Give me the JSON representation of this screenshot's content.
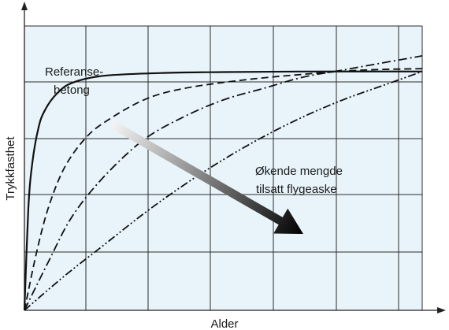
{
  "chart_data": {
    "type": "line",
    "title": "",
    "xlabel": "Alder",
    "ylabel": "Trykkfasthet",
    "xlim": [
      0,
      1
    ],
    "ylim": [
      0,
      1
    ],
    "grid": true,
    "plot_background": "#e8f4fa",
    "annotations": {
      "reference_label_line1": "Referanse-",
      "reference_label_line2": "betong",
      "arrow_label_line1": "Økende mengde",
      "arrow_label_line2": "tilsatt flygeaske"
    },
    "series": [
      {
        "style": "solid",
        "x": [
          0,
          0.01,
          0.02,
          0.035,
          0.05,
          0.08,
          0.12,
          0.2,
          0.35,
          0.5,
          0.7,
          1.0
        ],
        "y": [
          0,
          0.36,
          0.52,
          0.64,
          0.7,
          0.76,
          0.8,
          0.825,
          0.835,
          0.838,
          0.84,
          0.84
        ]
      },
      {
        "style": "dashed",
        "x": [
          0,
          0.03,
          0.06,
          0.1,
          0.15,
          0.2,
          0.3,
          0.4,
          0.55,
          0.7,
          0.85,
          1.0
        ],
        "y": [
          0,
          0.2,
          0.36,
          0.5,
          0.6,
          0.66,
          0.74,
          0.78,
          0.81,
          0.83,
          0.845,
          0.85
        ]
      },
      {
        "style": "dash-dot",
        "x": [
          0,
          0.06,
          0.12,
          0.2,
          0.3,
          0.4,
          0.5,
          0.6,
          0.7,
          0.8,
          0.9,
          1.0
        ],
        "y": [
          0,
          0.17,
          0.33,
          0.47,
          0.6,
          0.68,
          0.74,
          0.78,
          0.82,
          0.845,
          0.87,
          0.895
        ]
      },
      {
        "style": "dash-dot-dot",
        "x": [
          0,
          0.1,
          0.2,
          0.3,
          0.4,
          0.5,
          0.6,
          0.7,
          0.8,
          0.9,
          1.0
        ],
        "y": [
          0,
          0.12,
          0.23,
          0.34,
          0.44,
          0.53,
          0.61,
          0.68,
          0.74,
          0.79,
          0.84
        ]
      }
    ]
  }
}
